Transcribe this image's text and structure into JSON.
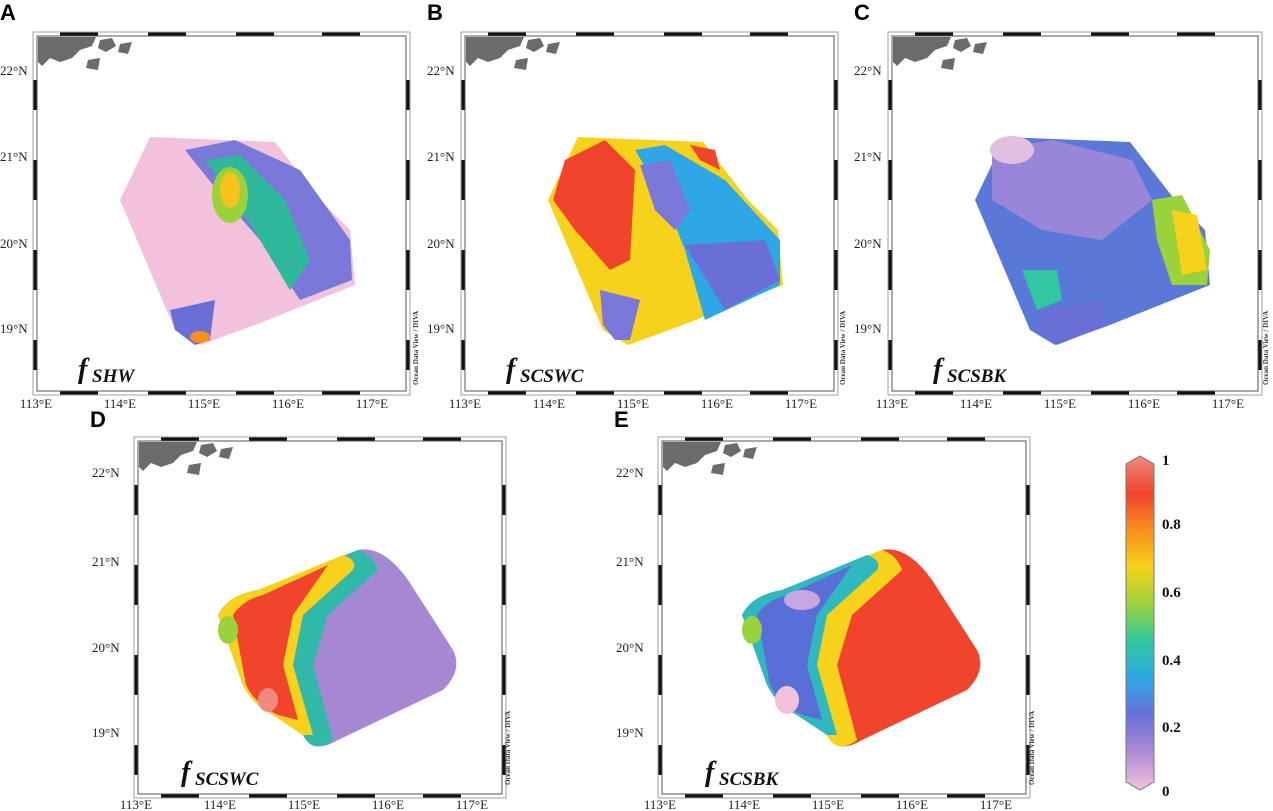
{
  "credit": "Ocean Data View / DIVA",
  "lat_labels": [
    "22°N",
    "21°N",
    "20°N",
    "19°N"
  ],
  "lon_labels": [
    "113°E",
    "114°E",
    "115°E",
    "116°E",
    "117°E"
  ],
  "panels": [
    {
      "letter": "A",
      "var_main": "f",
      "var_sub": "SHW"
    },
    {
      "letter": "B",
      "var_main": "f",
      "var_sub": "SCSWC"
    },
    {
      "letter": "C",
      "var_main": "f",
      "var_sub": "SCSBK"
    },
    {
      "letter": "D",
      "var_main": "f",
      "var_sub": "SCSWC"
    },
    {
      "letter": "E",
      "var_main": "f",
      "var_sub": "SCSBK"
    }
  ],
  "colorbar": {
    "labels": [
      "1",
      "0.8",
      "0.6",
      "0.4",
      "0.2",
      "0"
    ],
    "stops": [
      "#f2c2dc",
      "#b08cd8",
      "#6a6fd8",
      "#2fa6e6",
      "#30c8a0",
      "#9ad23c",
      "#f6d21c",
      "#f7901f",
      "#f0442c",
      "#f08a80"
    ]
  }
}
